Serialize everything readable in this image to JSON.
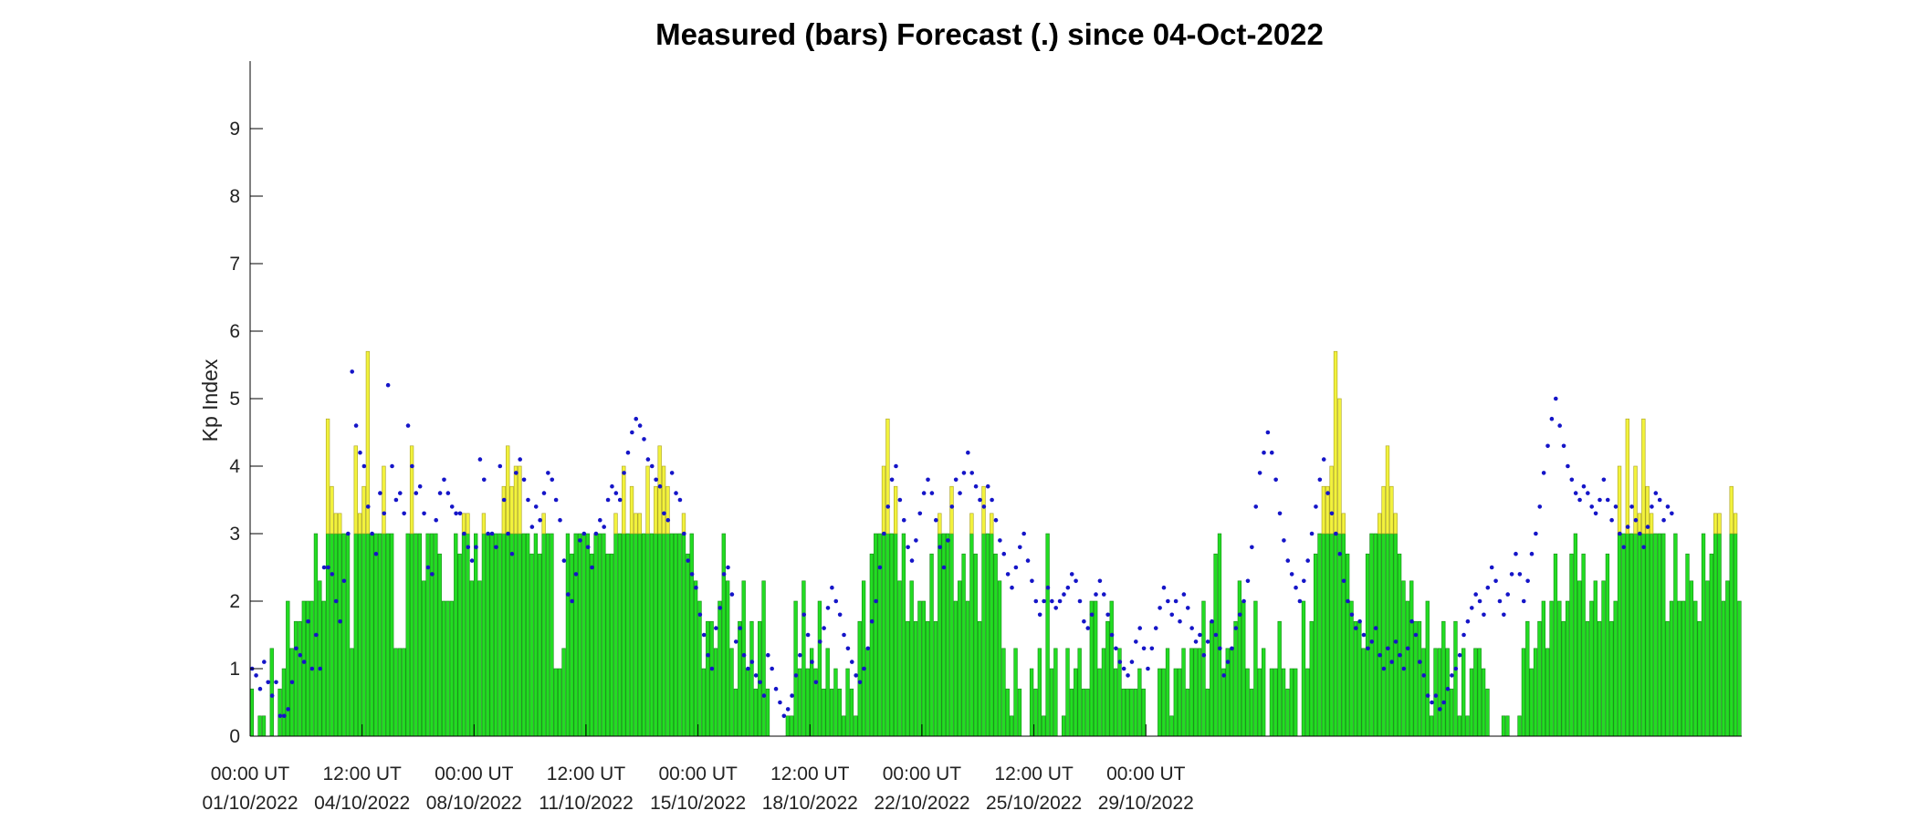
{
  "chart_data": {
    "type": "bar",
    "title": "Measured (bars) Forecast (.) since 04-Oct-2022",
    "ylabel": "Kp Index",
    "xlabel": "",
    "ylim": [
      0,
      10
    ],
    "yticks": [
      0,
      1,
      2,
      3,
      4,
      5,
      6,
      7,
      8,
      9
    ],
    "x_start": "01/10/2022 00:00 UT",
    "interval_hours": 3,
    "threshold": 3,
    "x_ticks": [
      {
        "line1": "00:00 UT",
        "line2": "01/10/2022"
      },
      {
        "line1": "12:00 UT",
        "line2": "04/10/2022"
      },
      {
        "line1": "00:00 UT",
        "line2": "08/10/2022"
      },
      {
        "line1": "12:00 UT",
        "line2": "11/10/2022"
      },
      {
        "line1": "00:00 UT",
        "line2": "15/10/2022"
      },
      {
        "line1": "12:00 UT",
        "line2": "18/10/2022"
      },
      {
        "line1": "00:00 UT",
        "line2": "22/10/2022"
      },
      {
        "line1": "12:00 UT",
        "line2": "25/10/2022"
      },
      {
        "line1": "00:00 UT",
        "line2": "29/10/2022"
      }
    ],
    "colors": {
      "below_threshold": "#22dd22",
      "above_threshold": "#f2f23c",
      "bar_edge": "#158a15",
      "bar_edge_high": "#a8a020",
      "forecast_dot": "#1515c8",
      "axis": "#000000"
    },
    "series": [
      {
        "name": "Measured",
        "style": "bars",
        "values": [
          0.7,
          0,
          0.3,
          0.3,
          0,
          1.3,
          0,
          0.7,
          1.0,
          2.0,
          1.3,
          1.7,
          1.7,
          2.0,
          2.0,
          2.0,
          3.0,
          2.3,
          2.0,
          4.7,
          3.7,
          3.3,
          3.3,
          3.0,
          3.0,
          1.3,
          4.3,
          3.3,
          3.7,
          5.7,
          3.0,
          3.0,
          3.0,
          4.0,
          3.0,
          3.0,
          1.3,
          1.3,
          1.3,
          3.0,
          4.3,
          3.0,
          3.0,
          2.3,
          3.0,
          3.0,
          3.0,
          2.7,
          2.0,
          2.0,
          2.0,
          3.0,
          2.7,
          3.3,
          3.3,
          2.3,
          3.0,
          2.3,
          3.3,
          3.0,
          3.0,
          3.0,
          3.0,
          3.7,
          4.3,
          3.7,
          4.0,
          4.0,
          3.0,
          3.0,
          2.7,
          3.0,
          2.7,
          3.3,
          3.0,
          3.0,
          1.0,
          1.0,
          1.3,
          3.0,
          2.7,
          3.0,
          3.0,
          3.0,
          3.0,
          2.7,
          3.0,
          3.0,
          3.0,
          2.7,
          2.7,
          3.3,
          3.0,
          4.0,
          3.0,
          3.7,
          3.3,
          3.3,
          3.0,
          4.0,
          3.0,
          3.7,
          4.3,
          4.0,
          3.7,
          3.0,
          3.0,
          3.0,
          3.3,
          2.7,
          3.0,
          2.3,
          2.0,
          1.0,
          1.7,
          1.7,
          1.3,
          2.0,
          3.0,
          2.3,
          1.3,
          0.7,
          1.7,
          2.3,
          1.0,
          1.7,
          0.7,
          1.7,
          2.3,
          0.7,
          0,
          0,
          0,
          0,
          0.3,
          0.3,
          2.0,
          1.0,
          2.3,
          1.0,
          1.3,
          1.0,
          2.0,
          0.7,
          1.3,
          0.7,
          1.0,
          0.7,
          0.3,
          1.0,
          0.7,
          0.3,
          1.7,
          2.3,
          1.3,
          2.7,
          3.0,
          3.0,
          4.0,
          4.7,
          3.0,
          3.7,
          2.3,
          3.0,
          1.7,
          2.3,
          1.7,
          2.0,
          2.0,
          1.7,
          2.7,
          1.7,
          3.3,
          3.0,
          3.0,
          3.7,
          2.0,
          2.3,
          2.7,
          2.0,
          3.3,
          2.7,
          1.7,
          3.7,
          3.0,
          3.3,
          2.7,
          2.3,
          1.3,
          0.7,
          0.3,
          1.3,
          0.7,
          0,
          0,
          1.0,
          0.7,
          1.3,
          0.3,
          3.0,
          1.0,
          1.3,
          0,
          0.3,
          1.3,
          0.7,
          1.0,
          1.3,
          0.7,
          0.7,
          2.0,
          2.0,
          1.0,
          1.3,
          1.7,
          2.0,
          1.0,
          1.3,
          0.7,
          0.7,
          0.7,
          0.7,
          1.0,
          0.7,
          0,
          0,
          0,
          1.0,
          1.0,
          1.3,
          0.3,
          1.0,
          1.0,
          1.3,
          0.7,
          1.3,
          1.3,
          1.3,
          2.0,
          0.7,
          1.7,
          2.7,
          3.0,
          1.0,
          1.3,
          1.3,
          1.7,
          2.3,
          2.0,
          1.0,
          0.7,
          2.0,
          1.0,
          1.3,
          0,
          1.0,
          1.0,
          1.7,
          1.0,
          0.7,
          1.0,
          1.0,
          0,
          2.0,
          1.0,
          1.7,
          2.7,
          3.0,
          3.7,
          3.7,
          4.0,
          5.7,
          5.0,
          3.3,
          2.7,
          2.0,
          1.7,
          1.7,
          1.3,
          2.7,
          3.0,
          3.0,
          3.3,
          3.7,
          4.3,
          3.7,
          3.3,
          2.7,
          2.3,
          2.0,
          2.3,
          1.7,
          1.7,
          1.3,
          2.0,
          0.3,
          1.3,
          1.3,
          1.7,
          1.3,
          0.7,
          1.7,
          0.3,
          1.3,
          0.3,
          1.0,
          1.3,
          1.3,
          1.0,
          0.7,
          0,
          0,
          0,
          0.3,
          0.3,
          0,
          0,
          0.3,
          1.3,
          1.7,
          1.0,
          1.3,
          1.7,
          2.0,
          1.3,
          2.0,
          2.7,
          2.0,
          1.7,
          2.0,
          2.7,
          3.0,
          2.3,
          2.7,
          1.7,
          2.0,
          2.3,
          1.7,
          2.3,
          2.7,
          1.7,
          2.0,
          4.0,
          3.0,
          4.7,
          3.0,
          4.0,
          3.3,
          4.7,
          3.7,
          3.3,
          3.0,
          3.0,
          3.0,
          1.7,
          2.0,
          3.0,
          2.0,
          2.0,
          2.7,
          2.3,
          2.0,
          1.7,
          3.0,
          2.3,
          2.7,
          3.3,
          3.3,
          2.0,
          2.3,
          3.7,
          3.3,
          2.0
        ]
      },
      {
        "name": "Forecast",
        "style": "dots",
        "values": [
          1.0,
          0.9,
          0.7,
          1.1,
          0.8,
          0.6,
          0.8,
          0.3,
          0.3,
          0.4,
          0.8,
          1.3,
          1.2,
          1.1,
          1.7,
          1.0,
          1.5,
          1.0,
          2.5,
          2.5,
          2.4,
          2.0,
          1.7,
          2.3,
          3.0,
          5.4,
          4.6,
          4.2,
          4.0,
          3.4,
          3.0,
          2.7,
          3.6,
          3.3,
          5.2,
          4.0,
          3.5,
          3.6,
          3.3,
          4.6,
          4.0,
          3.6,
          3.7,
          3.3,
          2.5,
          2.4,
          3.2,
          3.6,
          3.8,
          3.6,
          3.4,
          3.3,
          3.3,
          3.0,
          2.8,
          2.6,
          2.8,
          4.1,
          3.8,
          3.0,
          3.0,
          2.8,
          4.0,
          3.5,
          3.0,
          2.7,
          3.9,
          4.1,
          3.8,
          3.5,
          3.1,
          3.4,
          3.2,
          3.6,
          3.9,
          3.8,
          3.5,
          3.2,
          2.6,
          2.1,
          2.0,
          2.4,
          2.9,
          3.0,
          2.8,
          2.5,
          3.0,
          3.2,
          3.1,
          3.5,
          3.7,
          3.6,
          3.5,
          3.9,
          4.2,
          4.5,
          4.7,
          4.6,
          4.4,
          4.1,
          4.0,
          3.8,
          3.7,
          3.3,
          3.2,
          3.9,
          3.6,
          3.5,
          3.0,
          2.6,
          2.4,
          2.2,
          1.8,
          1.5,
          1.2,
          1.0,
          1.6,
          1.9,
          2.4,
          2.5,
          2.1,
          1.4,
          1.6,
          1.2,
          1.0,
          1.1,
          0.9,
          0.8,
          0.6,
          1.2,
          1.0,
          0.7,
          0.5,
          0.3,
          0.4,
          0.6,
          0.9,
          1.2,
          1.8,
          1.5,
          1.1,
          0.8,
          1.4,
          1.6,
          1.9,
          2.2,
          2.0,
          1.8,
          1.5,
          1.3,
          1.1,
          0.9,
          0.8,
          1.0,
          1.3,
          1.7,
          2.0,
          2.5,
          3.0,
          3.4,
          3.8,
          4.0,
          3.5,
          3.2,
          2.8,
          2.6,
          2.9,
          3.3,
          3.6,
          3.8,
          3.6,
          3.2,
          2.8,
          2.5,
          2.9,
          3.4,
          3.8,
          3.6,
          3.9,
          4.2,
          3.9,
          3.7,
          3.5,
          3.4,
          3.7,
          3.5,
          3.2,
          2.9,
          2.7,
          2.4,
          2.2,
          2.5,
          2.8,
          3.0,
          2.6,
          2.3,
          2.0,
          1.8,
          2.0,
          2.2,
          2.0,
          1.9,
          2.0,
          2.1,
          2.2,
          2.4,
          2.3,
          2.0,
          1.7,
          1.6,
          1.8,
          2.1,
          2.3,
          2.1,
          1.8,
          1.5,
          1.3,
          1.1,
          1.0,
          0.9,
          1.1,
          1.4,
          1.6,
          1.3,
          1.0,
          1.3,
          1.6,
          1.9,
          2.2,
          2.0,
          1.8,
          2.0,
          1.7,
          2.1,
          1.9,
          1.6,
          1.4,
          1.5,
          1.2,
          1.4,
          1.7,
          1.5,
          1.3,
          0.9,
          1.1,
          1.3,
          1.6,
          1.8,
          2.0,
          2.3,
          2.8,
          3.4,
          3.9,
          4.2,
          4.5,
          4.2,
          3.8,
          3.3,
          2.9,
          2.6,
          2.4,
          2.2,
          2.0,
          2.3,
          2.6,
          3.0,
          3.4,
          3.8,
          4.1,
          3.6,
          3.3,
          3.0,
          2.7,
          2.3,
          2.0,
          1.8,
          1.6,
          1.7,
          1.5,
          1.3,
          1.4,
          1.6,
          1.2,
          1.0,
          1.3,
          1.1,
          1.4,
          1.2,
          1.0,
          1.3,
          1.7,
          1.5,
          1.1,
          0.9,
          0.6,
          0.5,
          0.6,
          0.4,
          0.5,
          0.7,
          0.9,
          1.0,
          1.2,
          1.5,
          1.7,
          1.9,
          2.1,
          2.0,
          1.8,
          2.2,
          2.5,
          2.3,
          2.0,
          1.8,
          2.1,
          2.4,
          2.7,
          2.4,
          2.0,
          2.3,
          2.7,
          3.0,
          3.4,
          3.9,
          4.3,
          4.7,
          5.0,
          4.6,
          4.3,
          4.0,
          3.8,
          3.6,
          3.5,
          3.7,
          3.6,
          3.4,
          3.3,
          3.5,
          3.8,
          3.5,
          3.2,
          3.4,
          3.0,
          2.8,
          3.1,
          3.4,
          3.2,
          3.0,
          2.8,
          3.1,
          3.4,
          3.6,
          3.5,
          3.2,
          3.4,
          3.3
        ]
      }
    ]
  }
}
